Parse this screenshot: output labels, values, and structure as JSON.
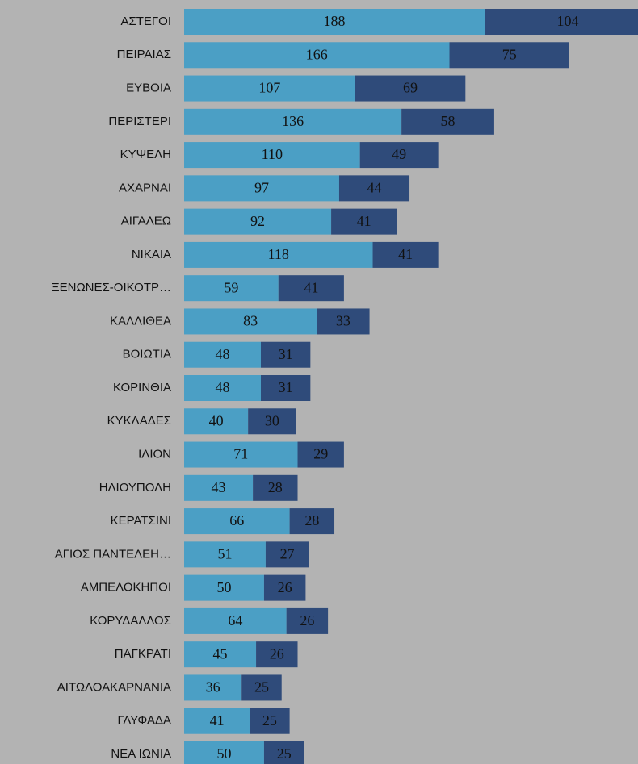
{
  "chart_data": {
    "type": "bar",
    "orientation": "horizontal",
    "stacked": true,
    "categories": [
      "ΑΣΤΕΓΟΙ",
      "ΠΕΙΡΑΙΑΣ",
      "ΕΥΒΟΙΑ",
      "ΠΕΡΙΣΤΕΡΙ",
      "ΚΥΨΕΛΗ",
      "ΑΧΑΡΝΑΙ",
      "ΑΙΓΑΛΕΩ",
      "ΝΙΚΑΙΑ",
      "ΞΕΝΩΝΕΣ-ΟΙΚΟΤΡ…",
      "ΚΑΛΛΙΘΕΑ",
      "ΒΟΙΩΤΙΑ",
      "ΚΟΡΙΝΘΙΑ",
      "ΚΥΚΛΑΔΕΣ",
      "ΙΛΙΟΝ",
      "ΗΛΙΟΥΠΟΛΗ",
      "ΚΕΡΑΤΣΙΝΙ",
      "ΑΓΙΟΣ ΠΑΝΤΕΛΕΗ…",
      "ΑΜΠΕΛΟΚΗΠΟΙ",
      "ΚΟΡΥΔΑΛΛΟΣ",
      "ΠΑΓΚΡΑΤΙ",
      "ΑΙΤΩΛΟΑΚΑΡΝΑΝΙΑ",
      "ΓΛΥΦΑΔΑ",
      "ΝΕΑ ΙΩΝΙΑ"
    ],
    "series": [
      {
        "color": "#4b9fc5",
        "values": [
          188,
          166,
          107,
          136,
          110,
          97,
          92,
          118,
          59,
          83,
          48,
          48,
          40,
          71,
          43,
          66,
          51,
          50,
          64,
          45,
          36,
          41,
          50
        ]
      },
      {
        "color": "#2f4b7a",
        "values": [
          104,
          75,
          69,
          58,
          49,
          44,
          41,
          41,
          41,
          33,
          31,
          31,
          30,
          29,
          28,
          28,
          27,
          26,
          26,
          26,
          25,
          25,
          25
        ]
      }
    ]
  }
}
